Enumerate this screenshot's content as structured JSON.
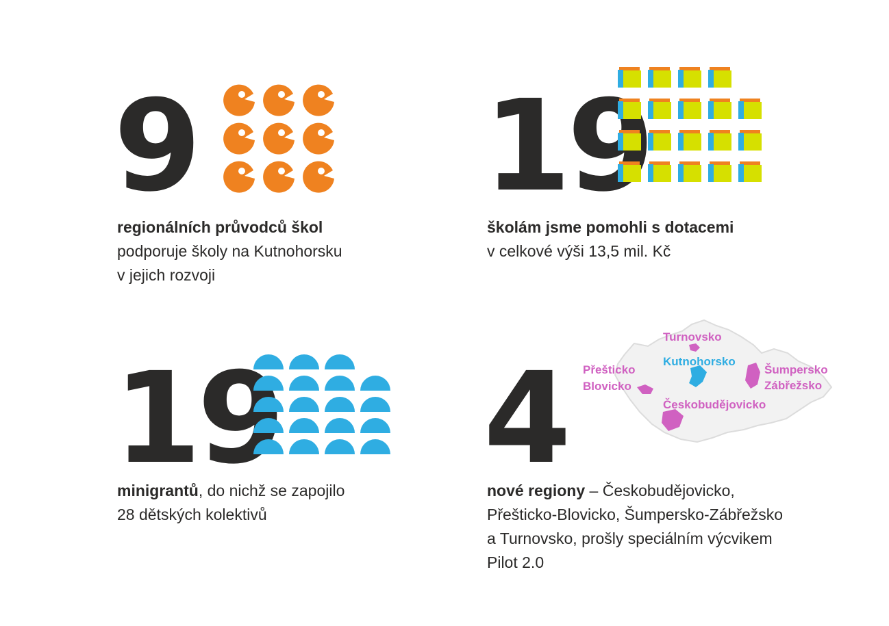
{
  "colors": {
    "text": "#2b2a29",
    "orange": "#ef8220",
    "blue": "#2fade2",
    "yellow_green": "#d6e000",
    "magenta": "#d061c1",
    "map_grey": "#f2f2f2"
  },
  "stats": [
    {
      "number": "9",
      "bold_text": "regionálních průvodců škol",
      "line2": "podporuje školy na Kutnohorsku",
      "line3": "v jejich rozvoji",
      "icon": "orange-face-icon",
      "icon_count": 9
    },
    {
      "number": "19",
      "bold_text": "školám jsme pomohli s dotacemi",
      "line2": "v celkové výši 13,5 mil. Kč",
      "icon": "school-building-icon",
      "icon_count": 19
    },
    {
      "number": "19",
      "bold_text": "minigrantů",
      "rest_line1": ", do nichž se zapojilo",
      "line2": "28 dětských kolektivů",
      "icon": "half-circle-icon",
      "icon_count": 19
    },
    {
      "number": "4",
      "bold_text": "nové regiony",
      "rest_line1": " – Českobudějovicko,",
      "line2": "Přešticko-Blovicko, Šumpersko-Zábřežsko",
      "line3": "a Turnovsko, prošly speciálním výcvikem",
      "line4": "Pilot 2.0",
      "icon": "czech-map-icon"
    }
  ],
  "map_labels": {
    "turnovsko": "Turnovsko",
    "kutnohorsko": "Kutnohorsko",
    "presticko": "Přešticko",
    "blovicko": "Blovicko",
    "sumpersko": "Šumpersko",
    "zabrezsko": "Zábřežsko",
    "ceskobudejovicko": "Českobudějovicko"
  }
}
